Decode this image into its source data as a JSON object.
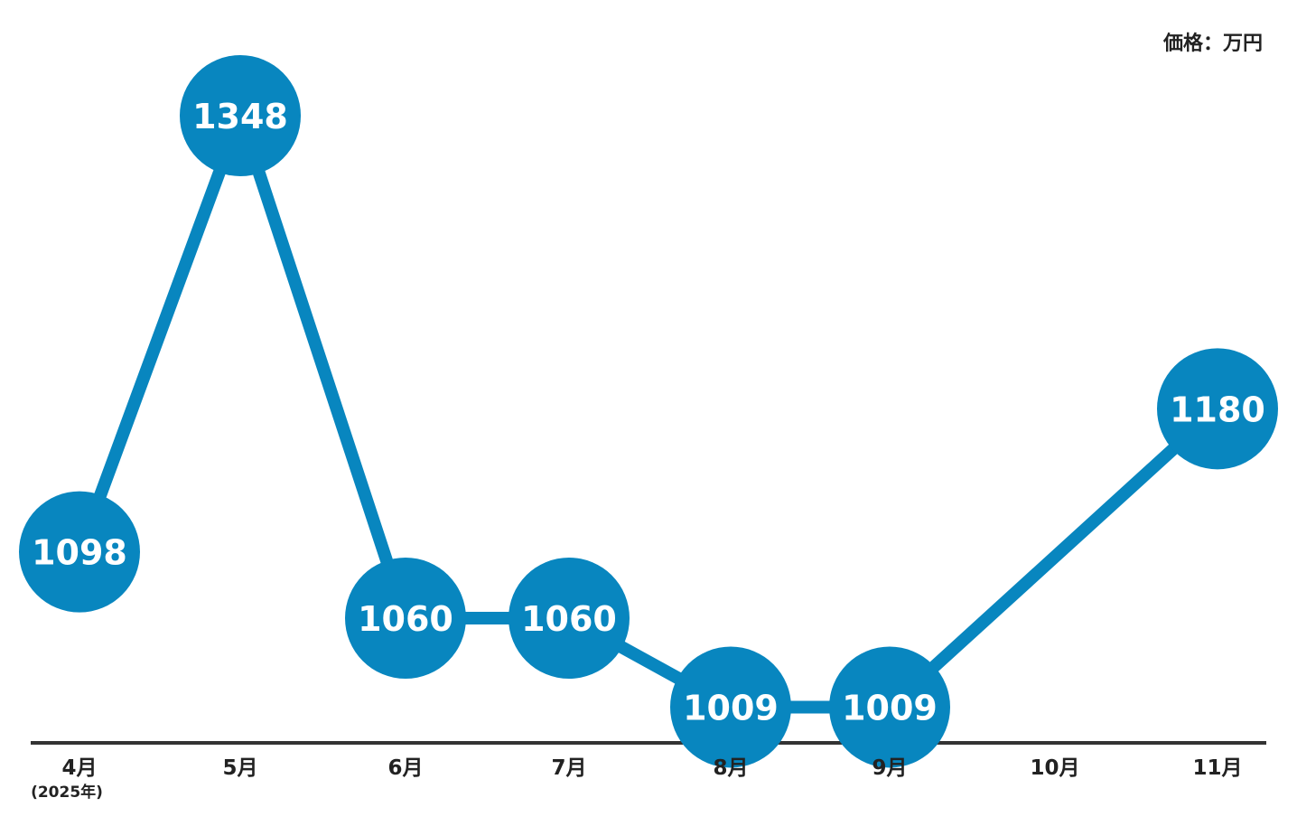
{
  "chart_data": {
    "type": "line",
    "unit_label": "価格：万円",
    "categories": [
      "4月",
      "5月",
      "6月",
      "7月",
      "8月",
      "9月",
      "10月",
      "11月"
    ],
    "first_category_sublabel": "(2025年)",
    "series": [
      {
        "x": [
          "4月",
          "5月",
          "6月",
          "7月",
          "8月",
          "9月",
          "11月"
        ],
        "values": [
          1098,
          1348,
          1060,
          1060,
          1009,
          1009,
          1180
        ]
      }
    ],
    "data_labels": [
      "1098",
      "1348",
      "1060",
      "1060",
      "1009",
      "1009",
      "1180"
    ],
    "colors": {
      "series": "#0886bf",
      "axis": "#333333",
      "label_text": "#ffffff",
      "tick_text": "#222222"
    },
    "grid": false,
    "ylim": [
      930,
      1400
    ]
  }
}
